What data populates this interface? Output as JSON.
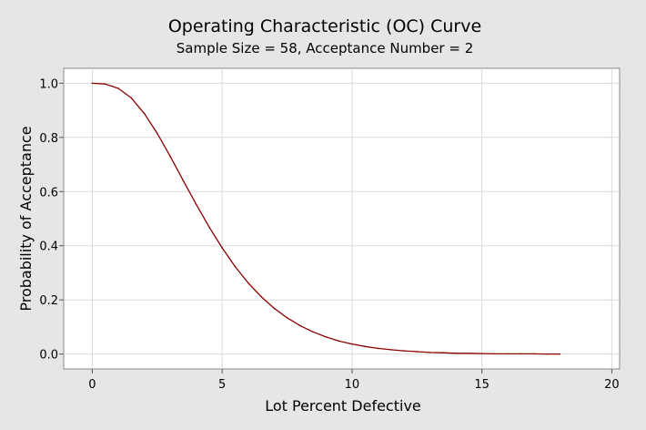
{
  "chart_data": {
    "type": "line",
    "title": "Operating Characteristic (OC) Curve",
    "subtitle": "Sample Size = 58, Acceptance Number = 2",
    "xlabel": "Lot Percent Defective",
    "ylabel": "Probability of Acceptance",
    "xlim": [
      -1.1,
      20.3
    ],
    "ylim": [
      -0.055,
      1.055
    ],
    "x_ticks": [
      0,
      5,
      10,
      15,
      20
    ],
    "x_tick_labels": [
      "0",
      "5",
      "10",
      "15",
      "20"
    ],
    "y_ticks": [
      0.0,
      0.2,
      0.4,
      0.6,
      0.8,
      1.0
    ],
    "y_tick_labels": [
      "0.0",
      "0.2",
      "0.4",
      "0.6",
      "0.8",
      "1.0"
    ],
    "grid": true,
    "series": [
      {
        "name": "OC Curve",
        "color": "#8b0000",
        "sample_size": 58,
        "acceptance_number": 2,
        "x": [
          0,
          0.5,
          1,
          1.5,
          2,
          2.5,
          3,
          3.5,
          4,
          4.5,
          5,
          5.5,
          6,
          6.5,
          7,
          7.5,
          8,
          8.5,
          9,
          9.5,
          10,
          10.5,
          11,
          11.5,
          12,
          12.5,
          13,
          13.5,
          14,
          14.5,
          15,
          15.5,
          16,
          16.5,
          17,
          17.5,
          18
        ],
        "y": [
          1.0,
          0.997,
          0.981,
          0.946,
          0.889,
          0.815,
          0.73,
          0.641,
          0.553,
          0.469,
          0.392,
          0.323,
          0.263,
          0.212,
          0.169,
          0.134,
          0.105,
          0.082,
          0.063,
          0.048,
          0.037,
          0.028,
          0.021,
          0.016,
          0.012,
          0.009,
          0.006,
          0.005,
          0.003,
          0.003,
          0.002,
          0.001,
          0.001,
          0.001,
          0.001,
          0.0,
          0.0
        ]
      }
    ]
  }
}
